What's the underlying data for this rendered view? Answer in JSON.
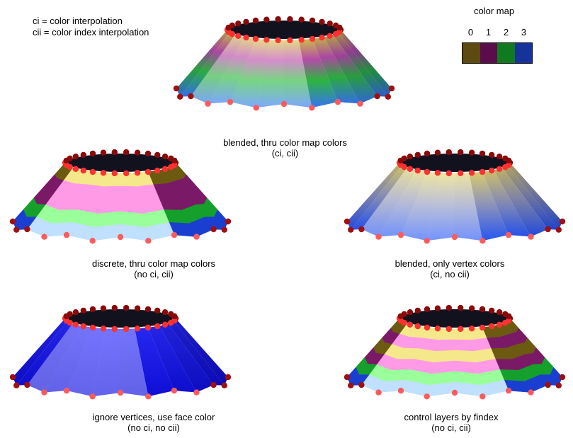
{
  "legend": {
    "line1": "ci = color interpolation",
    "line2": "cii = color index interpolation"
  },
  "color_map": {
    "title": "color map",
    "indices": [
      "0",
      "1",
      "2",
      "3"
    ],
    "colors": [
      "#5c4a10",
      "#5a0d4a",
      "#0f7a1e",
      "#16339a"
    ]
  },
  "panels": [
    {
      "caption_line1": "blended, thru color map colors",
      "caption_line2": "(ci, cii)",
      "mode": "blended-map"
    },
    {
      "caption_line1": "discrete, thru color map colors",
      "caption_line2": "(no ci, cii)",
      "mode": "discrete-map"
    },
    {
      "caption_line1": "blended, only vertex colors",
      "caption_line2": "(ci, no cii)",
      "mode": "vertex"
    },
    {
      "caption_line1": "ignore vertices, use face color",
      "caption_line2": "(no ci, no cii)",
      "mode": "face"
    },
    {
      "caption_line1": "control layers by findex",
      "caption_line2": "(no ci, cii)",
      "mode": "layers"
    }
  ]
}
